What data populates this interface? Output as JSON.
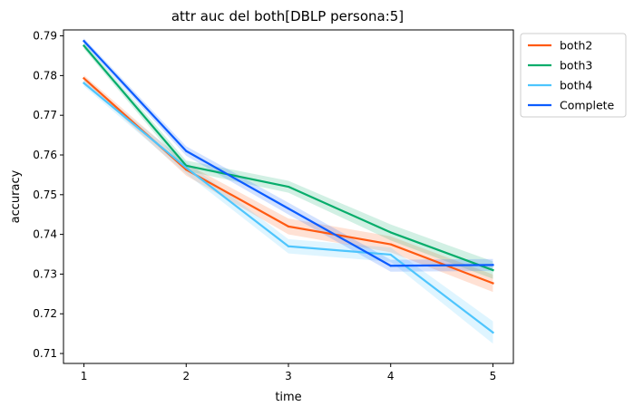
{
  "chart_data": {
    "type": "line",
    "title": "attr auc del both[DBLP persona:5]",
    "xlabel": "time",
    "ylabel": "accuracy",
    "x": [
      1,
      2,
      3,
      4,
      5
    ],
    "xlim": [
      0.8,
      5.2
    ],
    "ylim": [
      0.7075,
      0.7915
    ],
    "xticks": [
      1,
      2,
      3,
      4,
      5
    ],
    "yticks": [
      0.71,
      0.72,
      0.73,
      0.74,
      0.75,
      0.76,
      0.77,
      0.78,
      0.79
    ],
    "grid": false,
    "legend_position": "outside-top-right",
    "series": [
      {
        "name": "both2",
        "color": "#ff5a12",
        "values": [
          0.7793,
          0.7563,
          0.742,
          0.7375,
          0.7277
        ],
        "band_low": [
          0.7785,
          0.7548,
          0.74,
          0.7355,
          0.7255
        ],
        "band_high": [
          0.7801,
          0.7578,
          0.744,
          0.7395,
          0.7299
        ]
      },
      {
        "name": "both3",
        "color": "#07ad6b",
        "values": [
          0.7875,
          0.7573,
          0.752,
          0.7405,
          0.731
        ],
        "band_low": [
          0.7867,
          0.756,
          0.7505,
          0.7385,
          0.7288
        ],
        "band_high": [
          0.7883,
          0.7586,
          0.7535,
          0.7425,
          0.7332
        ]
      },
      {
        "name": "both4",
        "color": "#4ec5fd",
        "values": [
          0.7781,
          0.7568,
          0.737,
          0.7349,
          0.7153
        ],
        "band_low": [
          0.7773,
          0.7553,
          0.7352,
          0.7331,
          0.7125
        ],
        "band_high": [
          0.7789,
          0.7583,
          0.7388,
          0.7367,
          0.7181
        ]
      },
      {
        "name": "Complete",
        "color": "#0b5cff",
        "values": [
          0.7887,
          0.761,
          0.7465,
          0.7321,
          0.7323
        ],
        "band_low": [
          0.788,
          0.7598,
          0.745,
          0.7306,
          0.7308
        ],
        "band_high": [
          0.7894,
          0.7622,
          0.748,
          0.7336,
          0.7338
        ]
      }
    ]
  }
}
